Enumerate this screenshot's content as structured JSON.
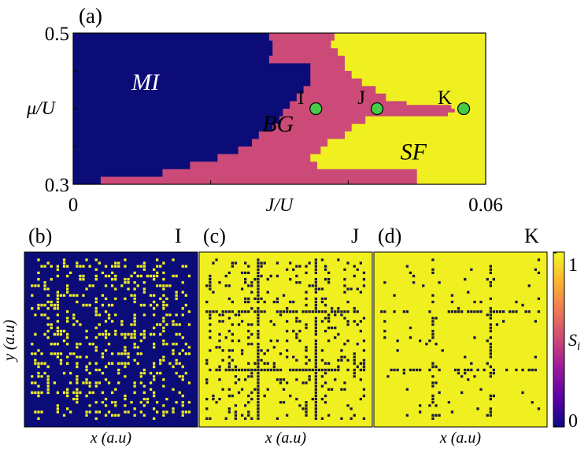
{
  "chart_data": [
    {
      "type": "heatmap",
      "panel_label": "(a)",
      "xlabel": "J/U",
      "ylabel": "μ/U",
      "xlim": [
        0,
        0.06
      ],
      "ylim": [
        0.3,
        0.5
      ],
      "x_ticks": [
        0,
        0.06
      ],
      "x_tick_labels": [
        "0",
        "0.06"
      ],
      "y_ticks": [
        0.3,
        0.5
      ],
      "y_tick_labels": [
        "0.3",
        "0.5"
      ],
      "phase_colors": {
        "MI": "#0c0c78",
        "BG": "#cc4a78",
        "SF": "#f0f020"
      },
      "regions": [
        {
          "name": "MI",
          "label": "MI",
          "color": "#0c0c78"
        },
        {
          "name": "BG",
          "label": "BG",
          "color": "#cc4a78"
        },
        {
          "name": "SF",
          "label": "SF",
          "color": "#f0f020"
        }
      ],
      "mi_boundary": [
        [
          0.004,
          0.3
        ],
        [
          0.004,
          0.305
        ],
        [
          0.013,
          0.31
        ],
        [
          0.017,
          0.32
        ],
        [
          0.021,
          0.33
        ],
        [
          0.024,
          0.34
        ],
        [
          0.026,
          0.35
        ],
        [
          0.027,
          0.36
        ],
        [
          0.029,
          0.37
        ],
        [
          0.03,
          0.38
        ],
        [
          0.0305,
          0.39
        ],
        [
          0.0315,
          0.4
        ],
        [
          0.0325,
          0.41
        ],
        [
          0.0335,
          0.42
        ],
        [
          0.0345,
          0.43
        ],
        [
          0.0345,
          0.44
        ],
        [
          0.0345,
          0.45
        ],
        [
          0.0285,
          0.46
        ],
        [
          0.029,
          0.47
        ],
        [
          0.029,
          0.48
        ],
        [
          0.0285,
          0.49
        ],
        [
          0.0285,
          0.5
        ]
      ],
      "sf_boundary": [
        [
          0.05,
          0.3
        ],
        [
          0.05,
          0.31
        ],
        [
          0.0355,
          0.32
        ],
        [
          0.0345,
          0.33
        ],
        [
          0.036,
          0.34
        ],
        [
          0.037,
          0.35
        ],
        [
          0.0395,
          0.36
        ],
        [
          0.0405,
          0.37
        ],
        [
          0.0425,
          0.38
        ],
        [
          0.0445,
          0.39
        ],
        [
          0.0545,
          0.39
        ],
        [
          0.0555,
          0.395
        ],
        [
          0.055,
          0.4
        ],
        [
          0.0485,
          0.405
        ],
        [
          0.0455,
          0.41
        ],
        [
          0.044,
          0.42
        ],
        [
          0.042,
          0.43
        ],
        [
          0.0405,
          0.44
        ],
        [
          0.0395,
          0.45
        ],
        [
          0.0395,
          0.46
        ],
        [
          0.0385,
          0.47
        ],
        [
          0.0375,
          0.48
        ],
        [
          0.038,
          0.49
        ],
        [
          0.04,
          0.5
        ]
      ],
      "points": [
        {
          "label": "I",
          "x": 0.0353,
          "y": 0.4,
          "color": "#46cc46"
        },
        {
          "label": "J",
          "x": 0.0442,
          "y": 0.4,
          "color": "#46cc46"
        },
        {
          "label": "K",
          "x": 0.0568,
          "y": 0.4,
          "color": "#46cc46"
        }
      ]
    },
    {
      "type": "heatmap",
      "panel_label": "(b)",
      "point": "I",
      "xlabel": "x (a.u)",
      "ylabel": "y (a.u)",
      "background": "#0c0c78",
      "dot_color": "#f0f020",
      "pattern": "dots"
    },
    {
      "type": "heatmap",
      "panel_label": "(c)",
      "point": "J",
      "xlabel": "x (a.u)",
      "background": "#f0f020",
      "dot_color": "#1a1a40",
      "pattern": "dense-dots-grid"
    },
    {
      "type": "heatmap",
      "panel_label": "(d)",
      "point": "K",
      "xlabel": "x (a.u)",
      "background": "#f0f020",
      "dot_color": "#1a1a40",
      "pattern": "sparse-dots-grid"
    }
  ],
  "colorbar": {
    "label": "S",
    "label_sub": "i",
    "min": 0,
    "max": 1,
    "tick_labels": [
      "0",
      "1"
    ],
    "colors": [
      "#0d0887",
      "#5c01a6",
      "#9c179e",
      "#cc4778",
      "#ed7953",
      "#fdb42f",
      "#f0f921"
    ]
  }
}
